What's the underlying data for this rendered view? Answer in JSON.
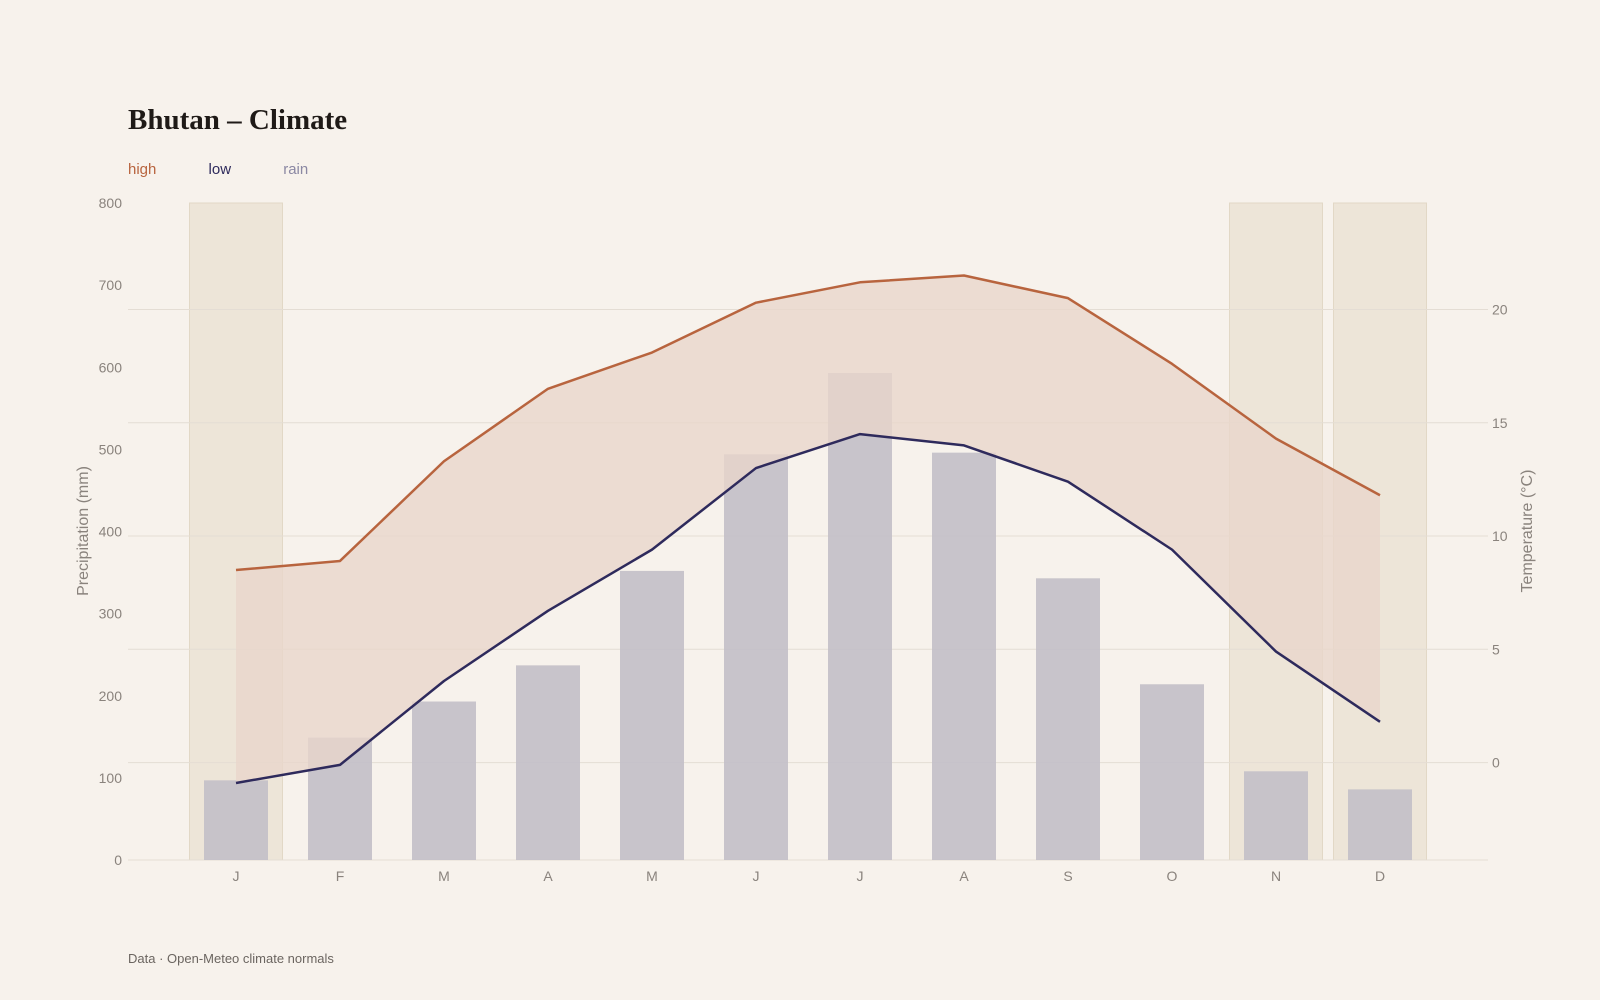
{
  "title": "Bhutan – Climate",
  "legend": [
    {
      "label": "high",
      "color": "#b8643e"
    },
    {
      "label": "low",
      "color": "#2e2a5c"
    },
    {
      "label": "rain",
      "color": "#8b88a3"
    }
  ],
  "footer": "Data · Open-Meteo climate normals",
  "chart_data": {
    "type": "bar",
    "categories": [
      "J",
      "F",
      "M",
      "A",
      "M",
      "J",
      "J",
      "A",
      "S",
      "O",
      "N",
      "D"
    ],
    "series": [
      {
        "name": "rain",
        "axis": "left",
        "type": "bar",
        "values": [
          97,
          149,
          193,
          237,
          352,
          494,
          593,
          496,
          343,
          214,
          108,
          86
        ]
      },
      {
        "name": "high",
        "axis": "right",
        "type": "line",
        "values": [
          8.5,
          8.9,
          13.3,
          16.5,
          18.1,
          20.3,
          21.2,
          21.5,
          20.5,
          17.6,
          14.3,
          11.8
        ]
      },
      {
        "name": "low",
        "axis": "right",
        "type": "line",
        "values": [
          -0.9,
          -0.1,
          3.6,
          6.7,
          9.4,
          13.0,
          14.5,
          14.0,
          12.4,
          9.4,
          4.9,
          1.8
        ]
      }
    ],
    "highlighted_months": [
      0,
      10,
      11
    ],
    "ylabel_left": "Precipitation (mm)",
    "ylabel_right": "Temperature (°C)",
    "ylim_left": [
      0,
      800
    ],
    "ylim_right": [
      -4.3,
      24.7
    ],
    "yticks_left": [
      0,
      100,
      200,
      300,
      400,
      500,
      600,
      700,
      800
    ],
    "yticks_right": [
      0,
      5,
      10,
      15,
      20
    ],
    "colors": {
      "high": "#b8643e",
      "low": "#2e2a5c",
      "rain_bar": "#c2bfc8",
      "band_fill": "#e9d6ca",
      "highlight_fill": "#ede5d8",
      "highlight_stroke": "#e2d8c6",
      "grid": "#e4ddd4"
    }
  }
}
